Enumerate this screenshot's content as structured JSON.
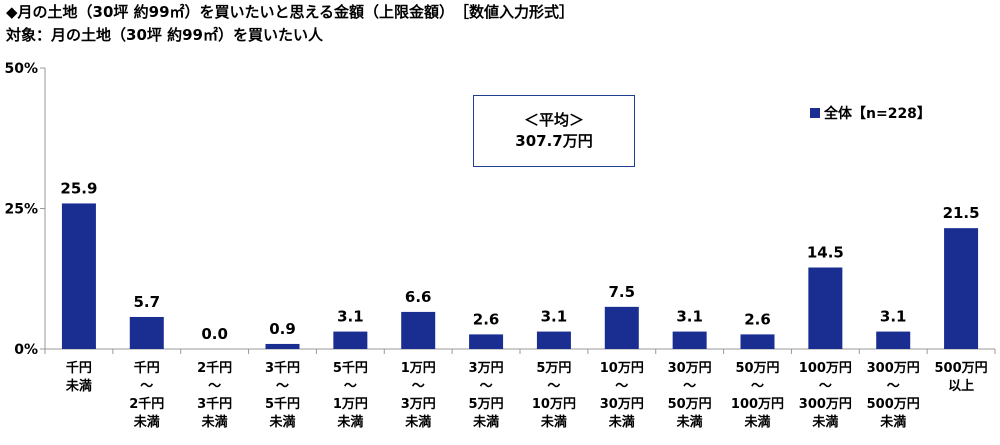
{
  "title": "◆月の土地（30坪 約99㎡）を買いたいと思える金額（上限金額）　［数値入力形式］",
  "subtitle": "対象：月の土地（30坪 約99㎡）を買いたい人",
  "average_box": {
    "line1": "＜平均＞",
    "line2": "307.7万円"
  },
  "legend": {
    "label": "全体【n=228】"
  },
  "colors": {
    "bar": "#1a2e92",
    "axis": "#999999",
    "box_border": "#1f3f8f"
  },
  "chart_data": {
    "type": "bar",
    "categories": [
      [
        "千円",
        "未満"
      ],
      [
        "千円",
        "～",
        "2千円",
        "未満"
      ],
      [
        "2千円",
        "～",
        "3千円",
        "未満"
      ],
      [
        "3千円",
        "～",
        "5千円",
        "未満"
      ],
      [
        "5千円",
        "～",
        "1万円",
        "未満"
      ],
      [
        "1万円",
        "～",
        "3万円",
        "未満"
      ],
      [
        "3万円",
        "～",
        "5万円",
        "未満"
      ],
      [
        "5万円",
        "～",
        "10万円",
        "未満"
      ],
      [
        "10万円",
        "～",
        "30万円",
        "未満"
      ],
      [
        "30万円",
        "～",
        "50万円",
        "未満"
      ],
      [
        "50万円",
        "～",
        "100万円",
        "未満"
      ],
      [
        "100万円",
        "～",
        "300万円",
        "未満"
      ],
      [
        "300万円",
        "～",
        "500万円",
        "未満"
      ],
      [
        "500万円",
        "以上"
      ]
    ],
    "series": [
      {
        "name": "全体【n=228】",
        "values": [
          25.9,
          5.7,
          0.0,
          0.9,
          3.1,
          6.6,
          2.6,
          3.1,
          7.5,
          3.1,
          2.6,
          14.5,
          3.1,
          21.5
        ]
      }
    ],
    "value_labels": [
      "25.9",
      "5.7",
      "0.0",
      "0.9",
      "3.1",
      "6.6",
      "2.6",
      "3.1",
      "7.5",
      "3.1",
      "2.6",
      "14.5",
      "3.1",
      "21.5"
    ],
    "y_ticks": [
      0,
      25,
      50
    ],
    "y_tick_labels": [
      "0%",
      "25%",
      "50%"
    ],
    "ylim": [
      0,
      50
    ],
    "xlabel": "",
    "ylabel": "",
    "grid": false,
    "legend_position": "top-right"
  }
}
